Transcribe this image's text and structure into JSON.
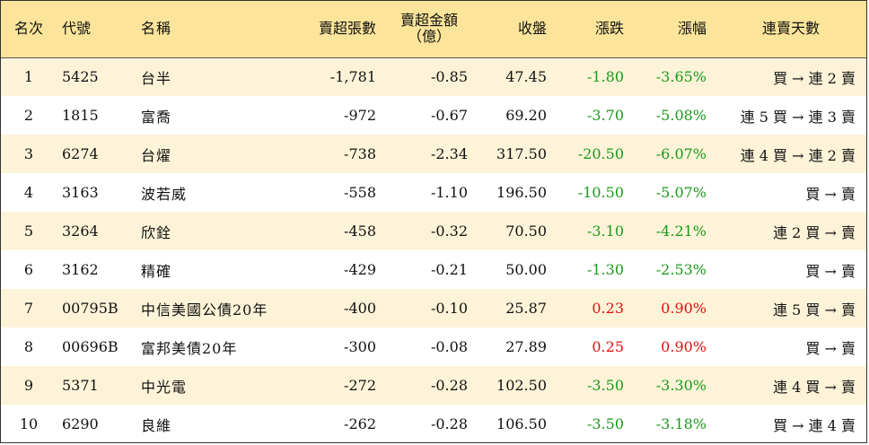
{
  "colors": {
    "header_bg": "#fce59a",
    "odd_row_bg": "#fdf3d8",
    "negative": "#1a9a1a",
    "positive": "#e01010"
  },
  "headers": {
    "rank": "名次",
    "code": "代號",
    "name": "名稱",
    "net_sell_lots": "賣超張數",
    "net_sell_amount_line1": "賣超金額",
    "net_sell_amount_line2": "（億）",
    "close": "收盤",
    "change": "漲跌",
    "change_pct": "漲幅",
    "consecutive_days": "連賣天數"
  },
  "rows": [
    {
      "rank": "1",
      "code": "5425",
      "name": "台半",
      "lots": "-1,781",
      "amount": "-0.85",
      "close": "47.45",
      "change": "-1.80",
      "pct": "-3.65%",
      "days": "買 → 連 2 賣",
      "dir": "neg"
    },
    {
      "rank": "2",
      "code": "1815",
      "name": "富喬",
      "lots": "-972",
      "amount": "-0.67",
      "close": "69.20",
      "change": "-3.70",
      "pct": "-5.08%",
      "days": "連 5 買 → 連 3 賣",
      "dir": "neg"
    },
    {
      "rank": "3",
      "code": "6274",
      "name": "台燿",
      "lots": "-738",
      "amount": "-2.34",
      "close": "317.50",
      "change": "-20.50",
      "pct": "-6.07%",
      "days": "連 4 買 → 連 2 賣",
      "dir": "neg"
    },
    {
      "rank": "4",
      "code": "3163",
      "name": "波若威",
      "lots": "-558",
      "amount": "-1.10",
      "close": "196.50",
      "change": "-10.50",
      "pct": "-5.07%",
      "days": "買 → 賣",
      "dir": "neg"
    },
    {
      "rank": "5",
      "code": "3264",
      "name": "欣銓",
      "lots": "-458",
      "amount": "-0.32",
      "close": "70.50",
      "change": "-3.10",
      "pct": "-4.21%",
      "days": "連 2 買 → 賣",
      "dir": "neg"
    },
    {
      "rank": "6",
      "code": "3162",
      "name": "精確",
      "lots": "-429",
      "amount": "-0.21",
      "close": "50.00",
      "change": "-1.30",
      "pct": "-2.53%",
      "days": "買 → 賣",
      "dir": "neg"
    },
    {
      "rank": "7",
      "code": "00795B",
      "name": "中信美國公債20年",
      "lots": "-400",
      "amount": "-0.10",
      "close": "25.87",
      "change": "0.23",
      "pct": "0.90%",
      "days": "連 5 買 → 賣",
      "dir": "pos"
    },
    {
      "rank": "8",
      "code": "00696B",
      "name": "富邦美債20年",
      "lots": "-300",
      "amount": "-0.08",
      "close": "27.89",
      "change": "0.25",
      "pct": "0.90%",
      "days": "買 → 賣",
      "dir": "pos"
    },
    {
      "rank": "9",
      "code": "5371",
      "name": "中光電",
      "lots": "-272",
      "amount": "-0.28",
      "close": "102.50",
      "change": "-3.50",
      "pct": "-3.30%",
      "days": "連 4 買 → 賣",
      "dir": "neg"
    },
    {
      "rank": "10",
      "code": "6290",
      "name": "良維",
      "lots": "-262",
      "amount": "-0.28",
      "close": "106.50",
      "change": "-3.50",
      "pct": "-3.18%",
      "days": "買 → 連 4 賣",
      "dir": "neg"
    }
  ]
}
